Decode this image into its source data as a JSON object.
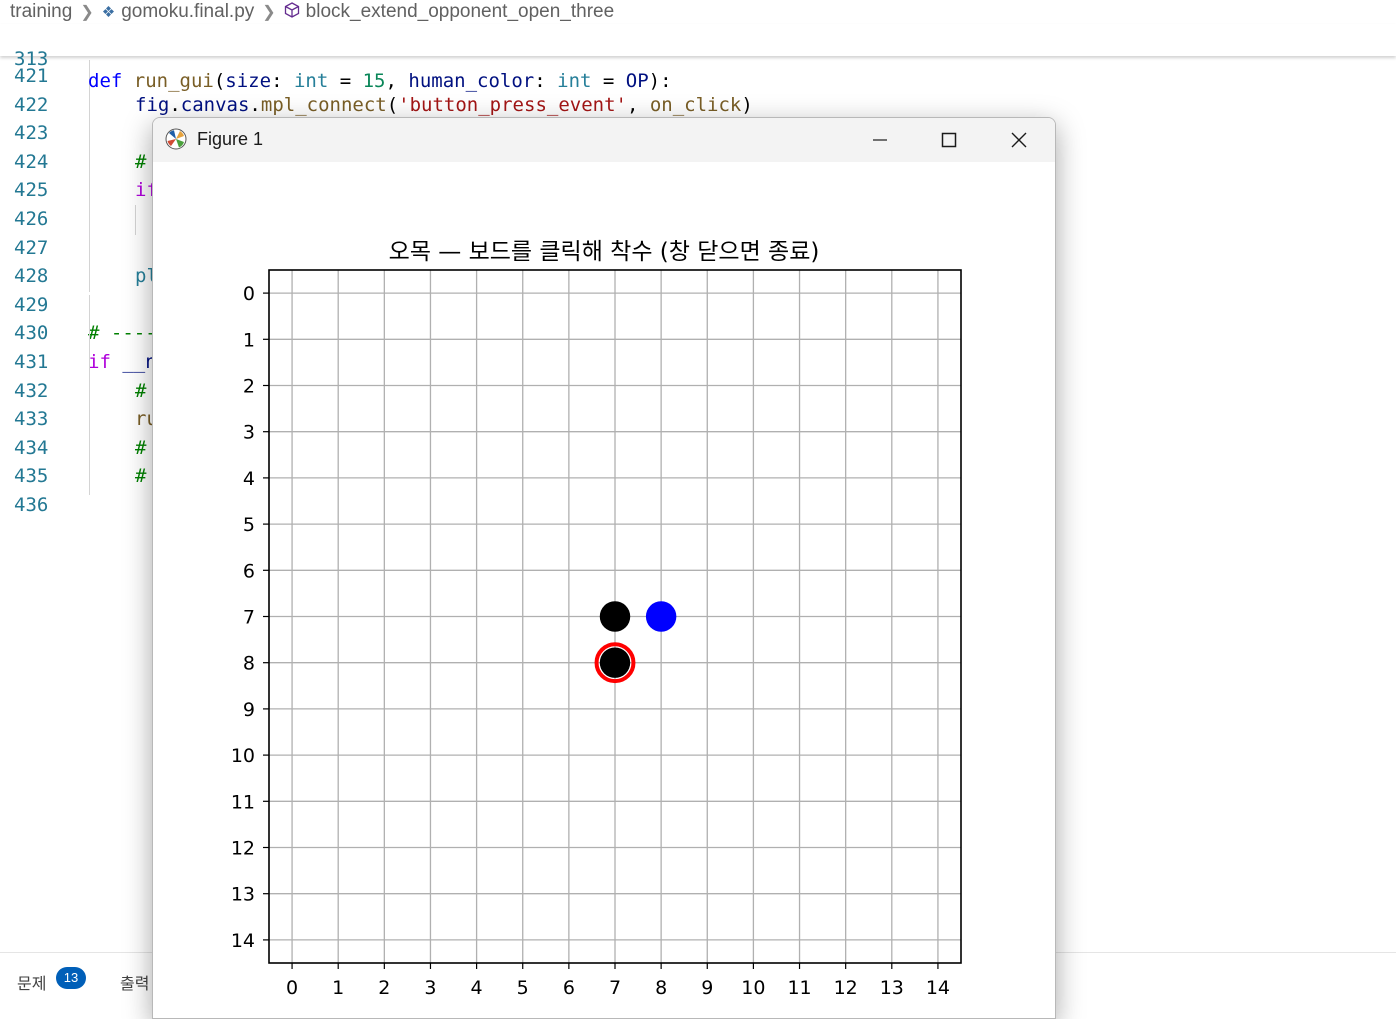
{
  "breadcrumb": {
    "items": [
      "training",
      "gomoku.final.py",
      "block_extend_opponent_open_three"
    ]
  },
  "editor": {
    "sticky_line": {
      "number": "313",
      "tokens": [
        {
          "t": "def ",
          "c": "kw"
        },
        {
          "t": "run_gui",
          "c": "fn"
        },
        {
          "t": "(",
          "c": ""
        },
        {
          "t": "size",
          "c": "param"
        },
        {
          "t": ": ",
          "c": ""
        },
        {
          "t": "int",
          "c": "type"
        },
        {
          "t": " = ",
          "c": ""
        },
        {
          "t": "15",
          "c": "num"
        },
        {
          "t": ", ",
          "c": ""
        },
        {
          "t": "human_color",
          "c": "param"
        },
        {
          "t": ": ",
          "c": ""
        },
        {
          "t": "int",
          "c": "type"
        },
        {
          "t": " = ",
          "c": ""
        },
        {
          "t": "OP",
          "c": "param"
        },
        {
          "t": "):",
          "c": ""
        }
      ]
    },
    "lines": [
      {
        "number": "421",
        "indent": 0,
        "tokens": []
      },
      {
        "number": "422",
        "indent": 2,
        "tokens": [
          {
            "t": "fig",
            "c": "param"
          },
          {
            "t": ".",
            "c": ""
          },
          {
            "t": "canvas",
            "c": "param"
          },
          {
            "t": ".",
            "c": ""
          },
          {
            "t": "mpl_connect",
            "c": "fn"
          },
          {
            "t": "(",
            "c": ""
          },
          {
            "t": "'button_press_event'",
            "c": "str"
          },
          {
            "t": ", ",
            "c": ""
          },
          {
            "t": "on_click",
            "c": "fn"
          },
          {
            "t": ")",
            "c": ""
          }
        ]
      },
      {
        "number": "423",
        "indent": 0,
        "tokens": []
      },
      {
        "number": "424",
        "indent": 2,
        "tokens": [
          {
            "t": "#",
            "c": "cmt"
          }
        ]
      },
      {
        "number": "425",
        "indent": 2,
        "tokens": [
          {
            "t": "if",
            "c": "kw2"
          }
        ]
      },
      {
        "number": "426",
        "indent": 0,
        "tokens": []
      },
      {
        "number": "427",
        "indent": 0,
        "tokens": []
      },
      {
        "number": "428",
        "indent": 2,
        "tokens": [
          {
            "t": "pl",
            "c": "type"
          }
        ]
      },
      {
        "number": "429",
        "indent": 0,
        "tokens": []
      },
      {
        "number": "430",
        "indent": 0,
        "tokens": [
          {
            "t": "# ----",
            "c": "cmt"
          }
        ]
      },
      {
        "number": "431",
        "indent": 0,
        "tokens": [
          {
            "t": "if",
            "c": "kw2"
          },
          {
            "t": " ",
            "c": ""
          },
          {
            "t": "__n",
            "c": "param"
          }
        ]
      },
      {
        "number": "432",
        "indent": 2,
        "tokens": [
          {
            "t": "#",
            "c": "cmt"
          }
        ]
      },
      {
        "number": "433",
        "indent": 2,
        "tokens": [
          {
            "t": "ru",
            "c": "fn"
          }
        ]
      },
      {
        "number": "434",
        "indent": 2,
        "tokens": [
          {
            "t": "#",
            "c": "cmt"
          }
        ]
      },
      {
        "number": "435",
        "indent": 2,
        "tokens": [
          {
            "t": "#",
            "c": "cmt"
          }
        ]
      },
      {
        "number": "436",
        "indent": 0,
        "tokens": []
      }
    ]
  },
  "panel": {
    "problems_label": "문제",
    "problems_count": "13",
    "output_label": "출력"
  },
  "figure_window": {
    "title": "Figure 1",
    "minimize_icon": "minimize-icon",
    "maximize_icon": "maximize-icon",
    "close_icon": "close-icon"
  },
  "chart_data": {
    "type": "scatter",
    "title": "오목 — 보드를 클릭해 착수 (창 닫으면 종료)",
    "xlabel": "",
    "ylabel": "",
    "xlim": [
      -0.5,
      14.5
    ],
    "ylim": [
      14.5,
      -0.5
    ],
    "y_inverted": true,
    "grid": true,
    "x_ticks": [
      0,
      1,
      2,
      3,
      4,
      5,
      6,
      7,
      8,
      9,
      10,
      11,
      12,
      13,
      14
    ],
    "y_ticks": [
      0,
      1,
      2,
      3,
      4,
      5,
      6,
      7,
      8,
      9,
      10,
      11,
      12,
      13,
      14
    ],
    "stones": [
      {
        "x": 7,
        "y": 7,
        "color": "#000000"
      },
      {
        "x": 8,
        "y": 7,
        "color": "#0000ff"
      },
      {
        "x": 7,
        "y": 8,
        "color": "#000000"
      }
    ],
    "last_move": {
      "x": 7,
      "y": 8,
      "color": "#ff0000"
    }
  }
}
